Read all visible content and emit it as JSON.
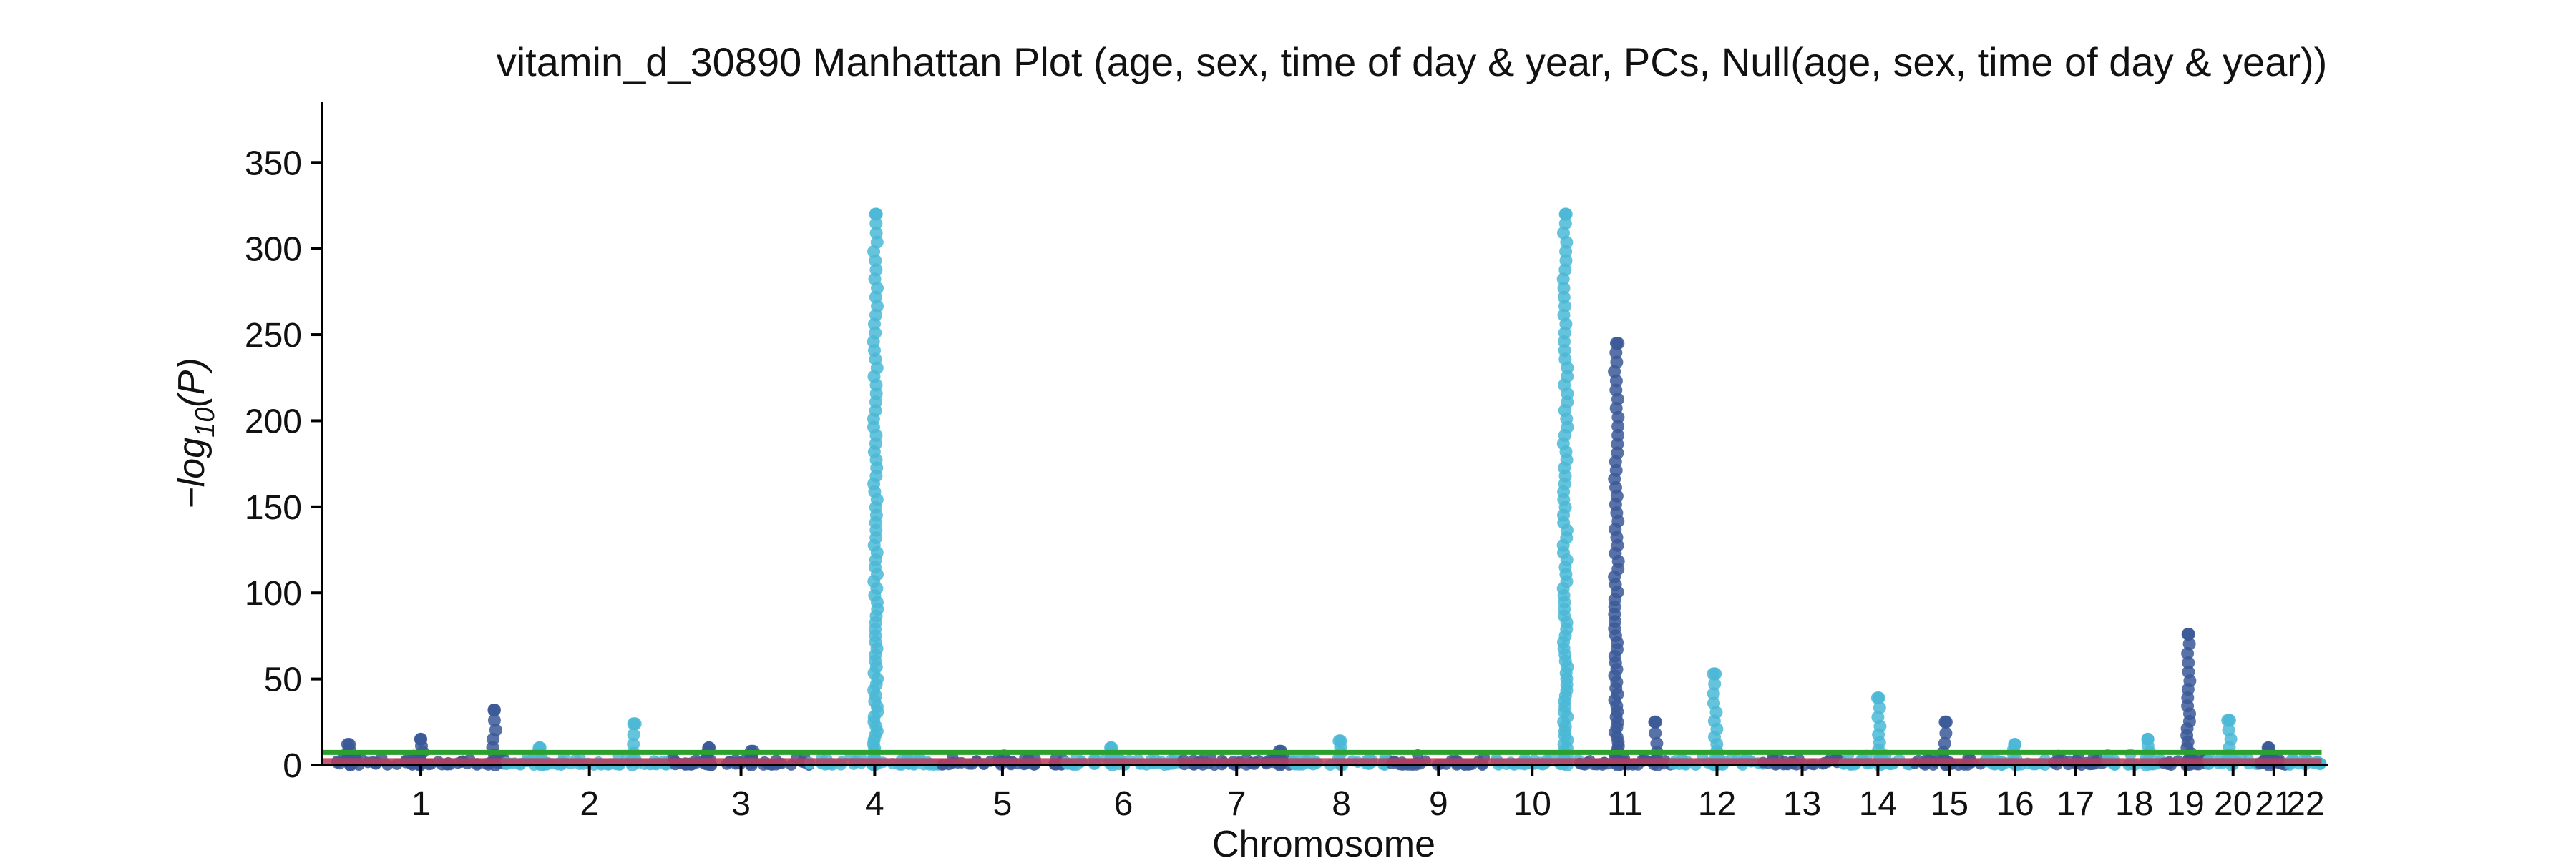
{
  "chart_data": {
    "type": "scatter",
    "title": "vitamin_d_30890 Manhattan Plot (age, sex, time of day & year, PCs, Null(age, sex, time of day & year))",
    "xlabel": "Chromosome",
    "ylabel_main": "−log",
    "ylabel_sub": "10",
    "ylabel_tail": "(P)",
    "ylim": [
      0,
      385
    ],
    "yticks": [
      0,
      50,
      100,
      150,
      200,
      250,
      300,
      350
    ],
    "chromosomes": [
      {
        "label": "1",
        "start": 0,
        "end": 100
      },
      {
        "label": "2",
        "start": 100,
        "end": 198
      },
      {
        "label": "3",
        "start": 198,
        "end": 278
      },
      {
        "label": "4",
        "start": 278,
        "end": 355
      },
      {
        "label": "5",
        "start": 355,
        "end": 428
      },
      {
        "label": "6",
        "start": 428,
        "end": 497
      },
      {
        "label": "7",
        "start": 497,
        "end": 561
      },
      {
        "label": "8",
        "start": 561,
        "end": 620
      },
      {
        "label": "9",
        "start": 620,
        "end": 675
      },
      {
        "label": "10",
        "start": 675,
        "end": 730
      },
      {
        "label": "11",
        "start": 730,
        "end": 784
      },
      {
        "label": "12",
        "start": 784,
        "end": 838
      },
      {
        "label": "13",
        "start": 838,
        "end": 884
      },
      {
        "label": "14",
        "start": 884,
        "end": 927
      },
      {
        "label": "15",
        "start": 927,
        "end": 968
      },
      {
        "label": "16",
        "start": 968,
        "end": 1004
      },
      {
        "label": "17",
        "start": 1004,
        "end": 1039
      },
      {
        "label": "18",
        "start": 1039,
        "end": 1073
      },
      {
        "label": "19",
        "start": 1073,
        "end": 1099
      },
      {
        "label": "20",
        "start": 1099,
        "end": 1129
      },
      {
        "label": "21",
        "start": 1129,
        "end": 1147
      },
      {
        "label": "22",
        "start": 1147,
        "end": 1166
      }
    ],
    "colors": {
      "odd": "#3b5998",
      "even": "#4ab8d6",
      "threshold": "#2ca02c",
      "baseline": "#c0395a"
    },
    "threshold_value": 7.3,
    "peaks": [
      {
        "pos": 8,
        "max": 12
      },
      {
        "pos": 50,
        "max": 15
      },
      {
        "pos": 93,
        "max": 32
      },
      {
        "pos": 120,
        "max": 10
      },
      {
        "pos": 175,
        "max": 24
      },
      {
        "pos": 219,
        "max": 10
      },
      {
        "pos": 244,
        "max": 8
      },
      {
        "pos": 317,
        "max": 320
      },
      {
        "pos": 455,
        "max": 10
      },
      {
        "pos": 555,
        "max": 8
      },
      {
        "pos": 590,
        "max": 14
      },
      {
        "pos": 722,
        "max": 320
      },
      {
        "pos": 752,
        "max": 245
      },
      {
        "pos": 775,
        "max": 25
      },
      {
        "pos": 810,
        "max": 53
      },
      {
        "pos": 906,
        "max": 39
      },
      {
        "pos": 945,
        "max": 25
      },
      {
        "pos": 986,
        "max": 12
      },
      {
        "pos": 1064,
        "max": 15
      },
      {
        "pos": 1088,
        "max": 76
      },
      {
        "pos": 1112,
        "max": 26
      },
      {
        "pos": 1135,
        "max": 10
      }
    ]
  }
}
